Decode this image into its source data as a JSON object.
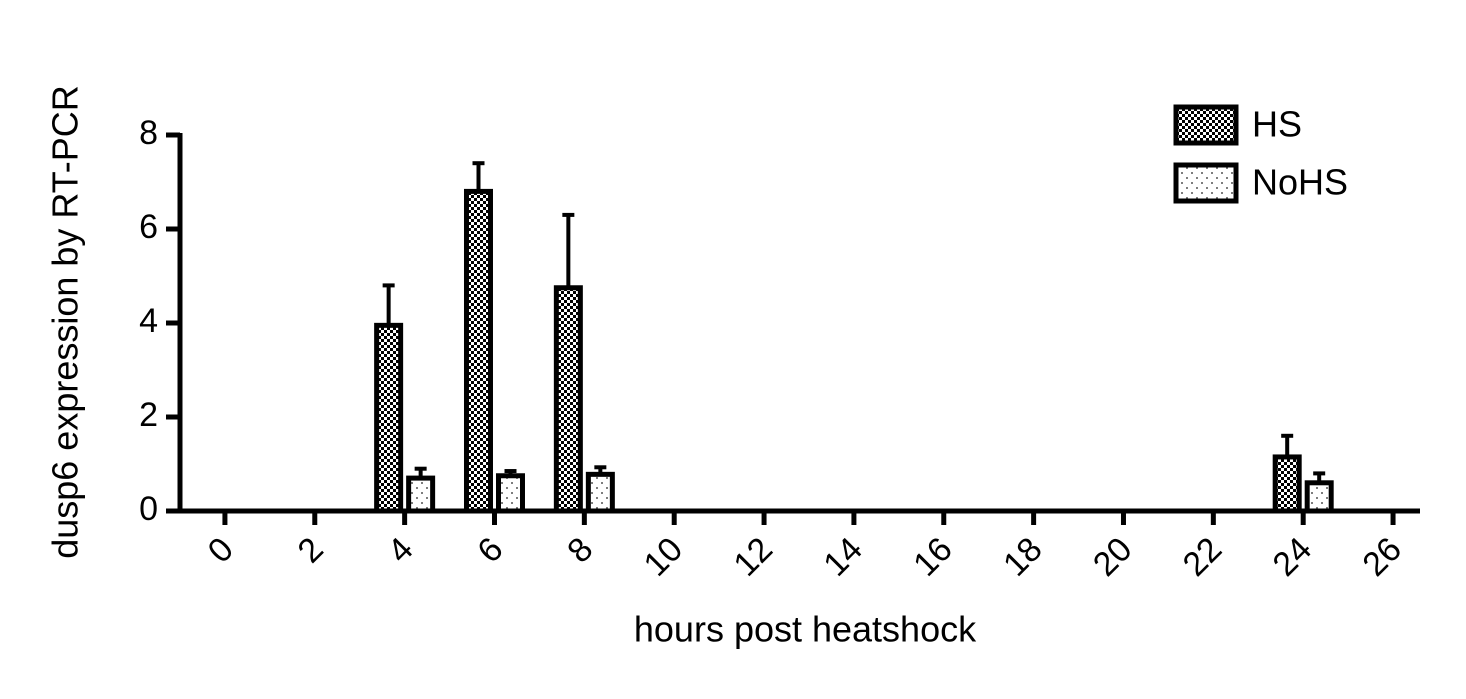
{
  "chart_data": {
    "type": "bar",
    "x_label": "hours post heatshock",
    "y_label": "dusp6 expression by RT-PCR",
    "x": [
      4,
      6,
      8,
      24
    ],
    "series": [
      {
        "name": "HS",
        "color": "#000000",
        "values": [
          3.95,
          6.8,
          4.75,
          1.15
        ],
        "errors": [
          0.85,
          0.6,
          1.55,
          0.45
        ]
      },
      {
        "name": "NoHS",
        "color": "#000000",
        "values": [
          0.7,
          0.75,
          0.78,
          0.6
        ],
        "errors": [
          0.2,
          0.1,
          0.15,
          0.2
        ]
      }
    ],
    "xlim": [
      -1,
      26.6
    ],
    "xticks": [
      0,
      2,
      4,
      6,
      8,
      10,
      12,
      14,
      16,
      18,
      20,
      22,
      24,
      26
    ],
    "ylim": [
      0,
      8
    ],
    "yticks": [
      0,
      2,
      4,
      6,
      8
    ],
    "legend": "top-right"
  }
}
